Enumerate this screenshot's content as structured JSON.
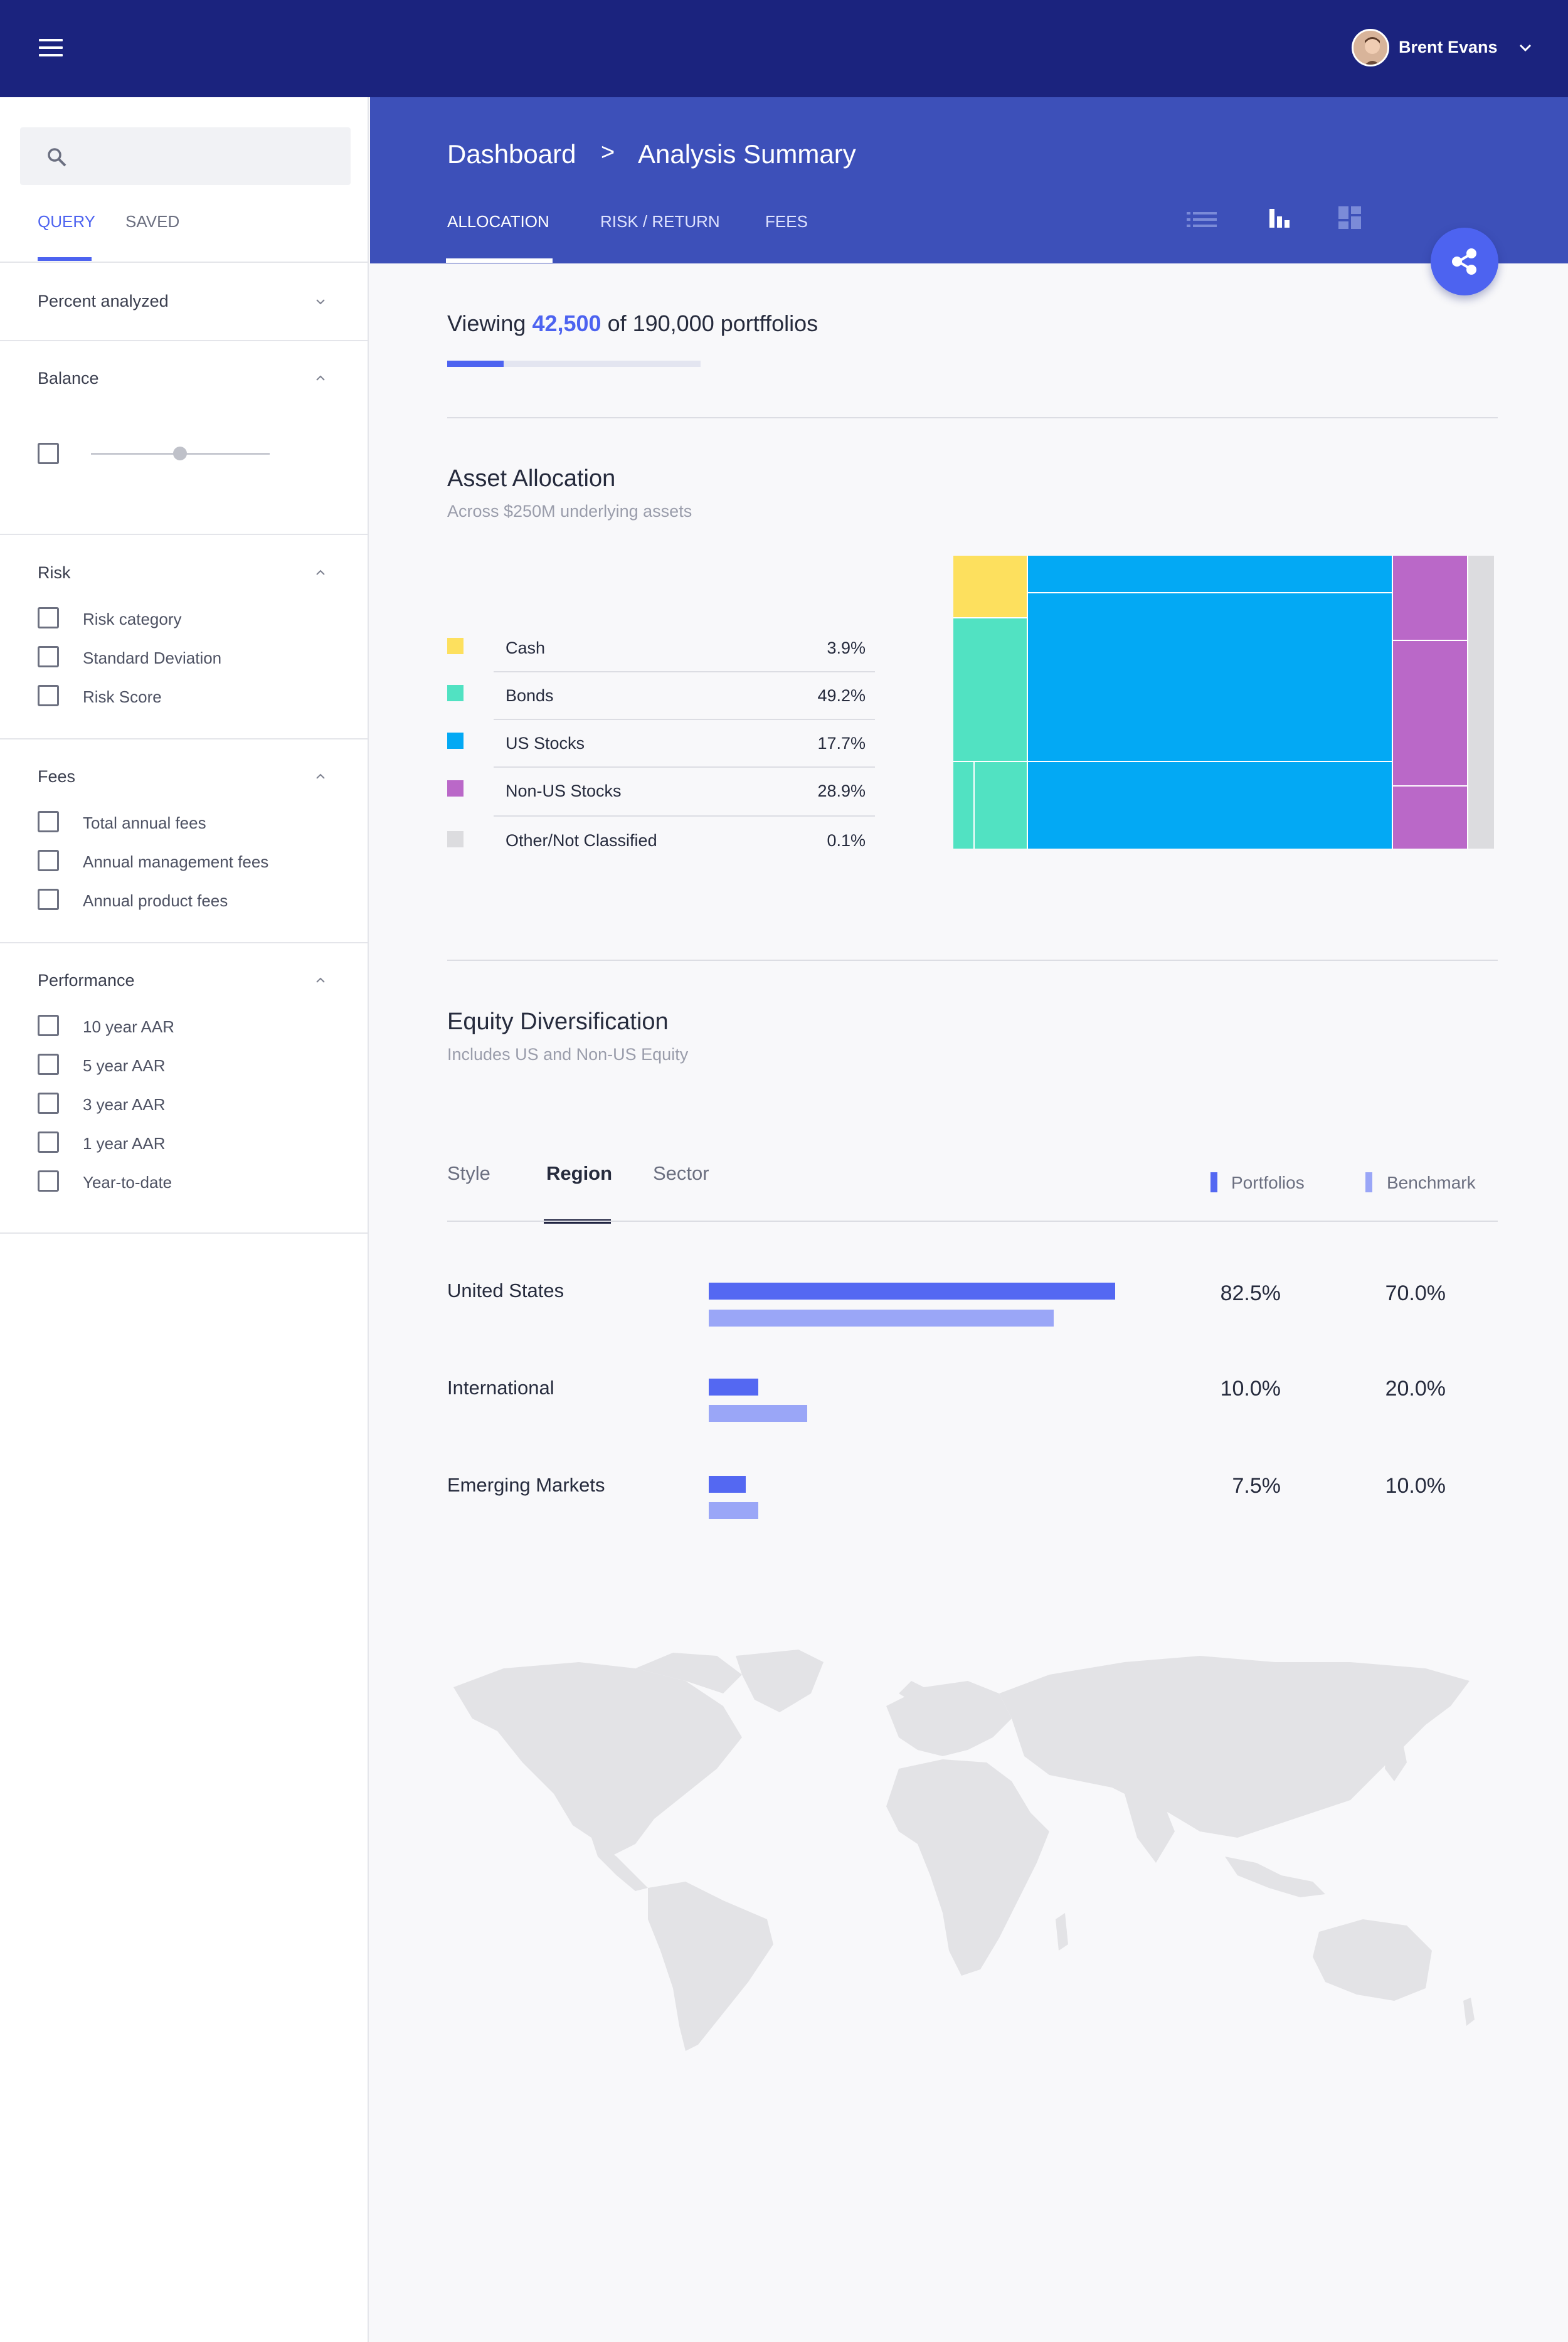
{
  "topbar": {
    "user_name": "Brent Evans"
  },
  "sidebar": {
    "search": {
      "placeholder": ""
    },
    "tabs": [
      "QUERY",
      "SAVED"
    ],
    "sections": [
      {
        "title": "Percent analyzed",
        "expanded": false,
        "items": []
      },
      {
        "title": "Balance",
        "expanded": true,
        "items": []
      },
      {
        "title": "Risk",
        "expanded": true,
        "items": [
          "Risk category",
          "Standard Deviation",
          "Risk Score"
        ]
      },
      {
        "title": "Fees",
        "expanded": true,
        "items": [
          "Total annual fees",
          "Annual management fees",
          "Annual product fees"
        ]
      },
      {
        "title": "Performance",
        "expanded": true,
        "items": [
          "10 year AAR",
          "5 year AAR",
          "3 year AAR",
          "1 year AAR",
          "Year-to-date"
        ]
      }
    ],
    "balance_slider_value": 0.5
  },
  "breadcrumb": {
    "root": "Dashboard",
    "separator": ">",
    "current": "Analysis Summary"
  },
  "main_tabs": [
    "ALLOCATION",
    "RISK / RETURN",
    "FEES"
  ],
  "view_icons": [
    "list-view-icon",
    "bar-chart-view-icon",
    "dashboard-view-icon"
  ],
  "viewing": {
    "prefix": "Viewing",
    "count": "42,500",
    "suffix": "of 190,000 portffolios",
    "progress_fraction": 0.2236
  },
  "asset_allocation": {
    "title": "Asset Allocation",
    "subtitle": "Across $250M underlying assets",
    "items": [
      {
        "name": "Cash",
        "value": "3.9%",
        "color": "#fde05e"
      },
      {
        "name": "Bonds",
        "value": "49.2%",
        "color": "#51e2c2"
      },
      {
        "name": "US Stocks",
        "value": "17.7%",
        "color": "#03a9f4"
      },
      {
        "name": "Non-US Stocks",
        "value": "28.9%",
        "color": "#ba68c8"
      },
      {
        "name": "Other/Not Classified",
        "value": "0.1%",
        "color": "#dcdcdf"
      }
    ]
  },
  "equity": {
    "title": "Equity Diversification",
    "subtitle": "Includes US and Non-US Equity",
    "tabs": [
      "Style",
      "Region",
      "Sector"
    ],
    "active_tab": "Region",
    "legend": [
      {
        "name": "Portfolios",
        "color": "#5468f2"
      },
      {
        "name": "Benchmark",
        "color": "#9aa6f7"
      }
    ]
  },
  "chart_data": {
    "type": "bar",
    "orientation": "horizontal",
    "categories": [
      "United States",
      "International",
      "Emerging Markets"
    ],
    "series": [
      {
        "name": "Portfolios",
        "values": [
          82.5,
          10.0,
          7.5
        ],
        "labels": [
          "82.5%",
          "10.0%",
          "7.5%"
        ],
        "color": "#5468f2"
      },
      {
        "name": "Benchmark",
        "values": [
          70.0,
          20.0,
          10.0
        ],
        "labels": [
          "70.0%",
          "20.0%",
          "10.0%"
        ],
        "color": "#9aa6f7"
      }
    ]
  }
}
